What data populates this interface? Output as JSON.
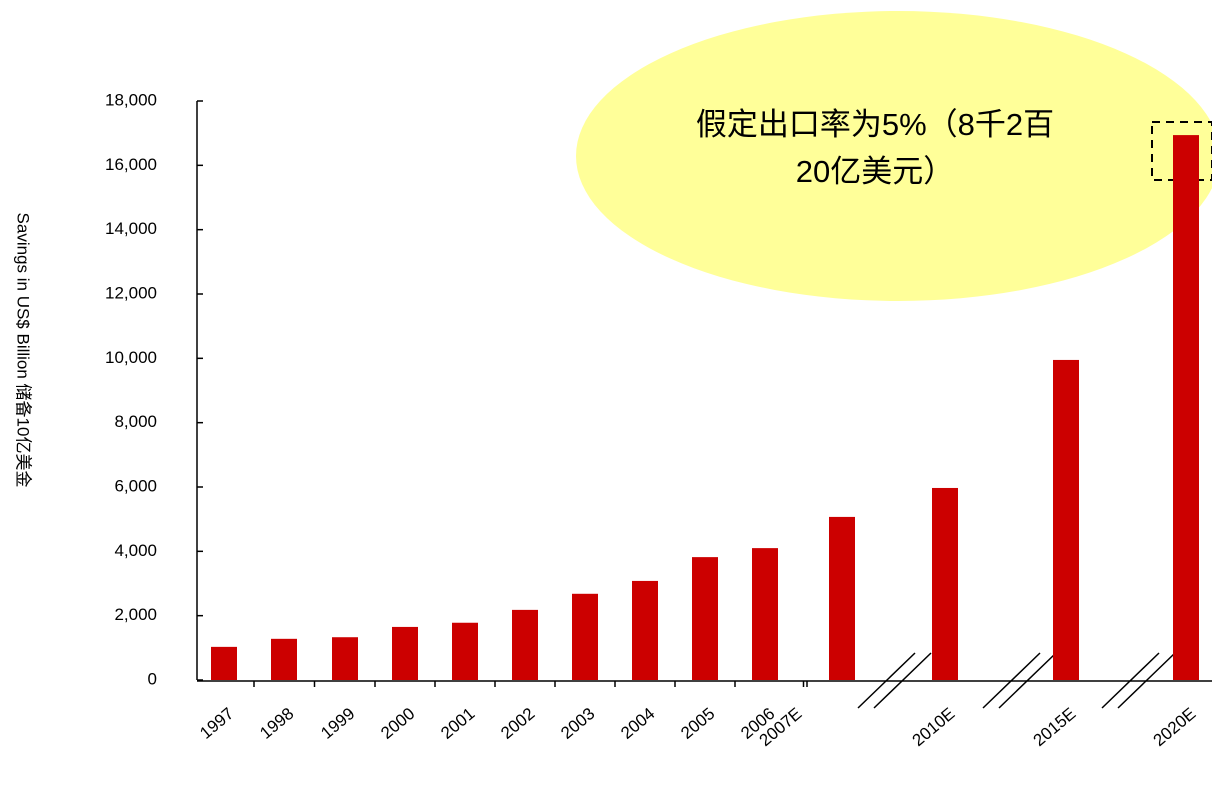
{
  "chart_data": {
    "type": "bar",
    "y_label": "Savings in US$ Billion 储备10亿美金",
    "annotation": [
      "假定出口率为5%（8千2百",
      "20亿美元）"
    ],
    "categories": [
      "1997",
      "1998",
      "1999",
      "2000",
      "2001",
      "2002",
      "2003",
      "2004",
      "2005",
      "2006",
      "2007E",
      "2010E",
      "2015E",
      "2020E"
    ],
    "values": [
      1030,
      1280,
      1330,
      1650,
      1780,
      2180,
      2680,
      3080,
      3820,
      4100,
      5070,
      5970,
      9950,
      16940
    ],
    "color": "#cc0000",
    "ylim": [
      0,
      18000
    ],
    "yticks": [
      0,
      {
        "value": 2000,
        "label": "2,000"
      },
      {
        "value": 4000,
        "label": "4,000"
      },
      {
        "value": 6000,
        "label": "6,000"
      },
      {
        "value": 8000,
        "label": "8,000"
      },
      {
        "value": 10000,
        "label": "10,000"
      },
      {
        "value": 12000,
        "label": "12,000"
      },
      {
        "value": 14000,
        "label": "14,000"
      },
      {
        "value": 16000,
        "label": "16,000"
      },
      {
        "value": 18000,
        "label": "18,000"
      }
    ],
    "grid": false
  }
}
